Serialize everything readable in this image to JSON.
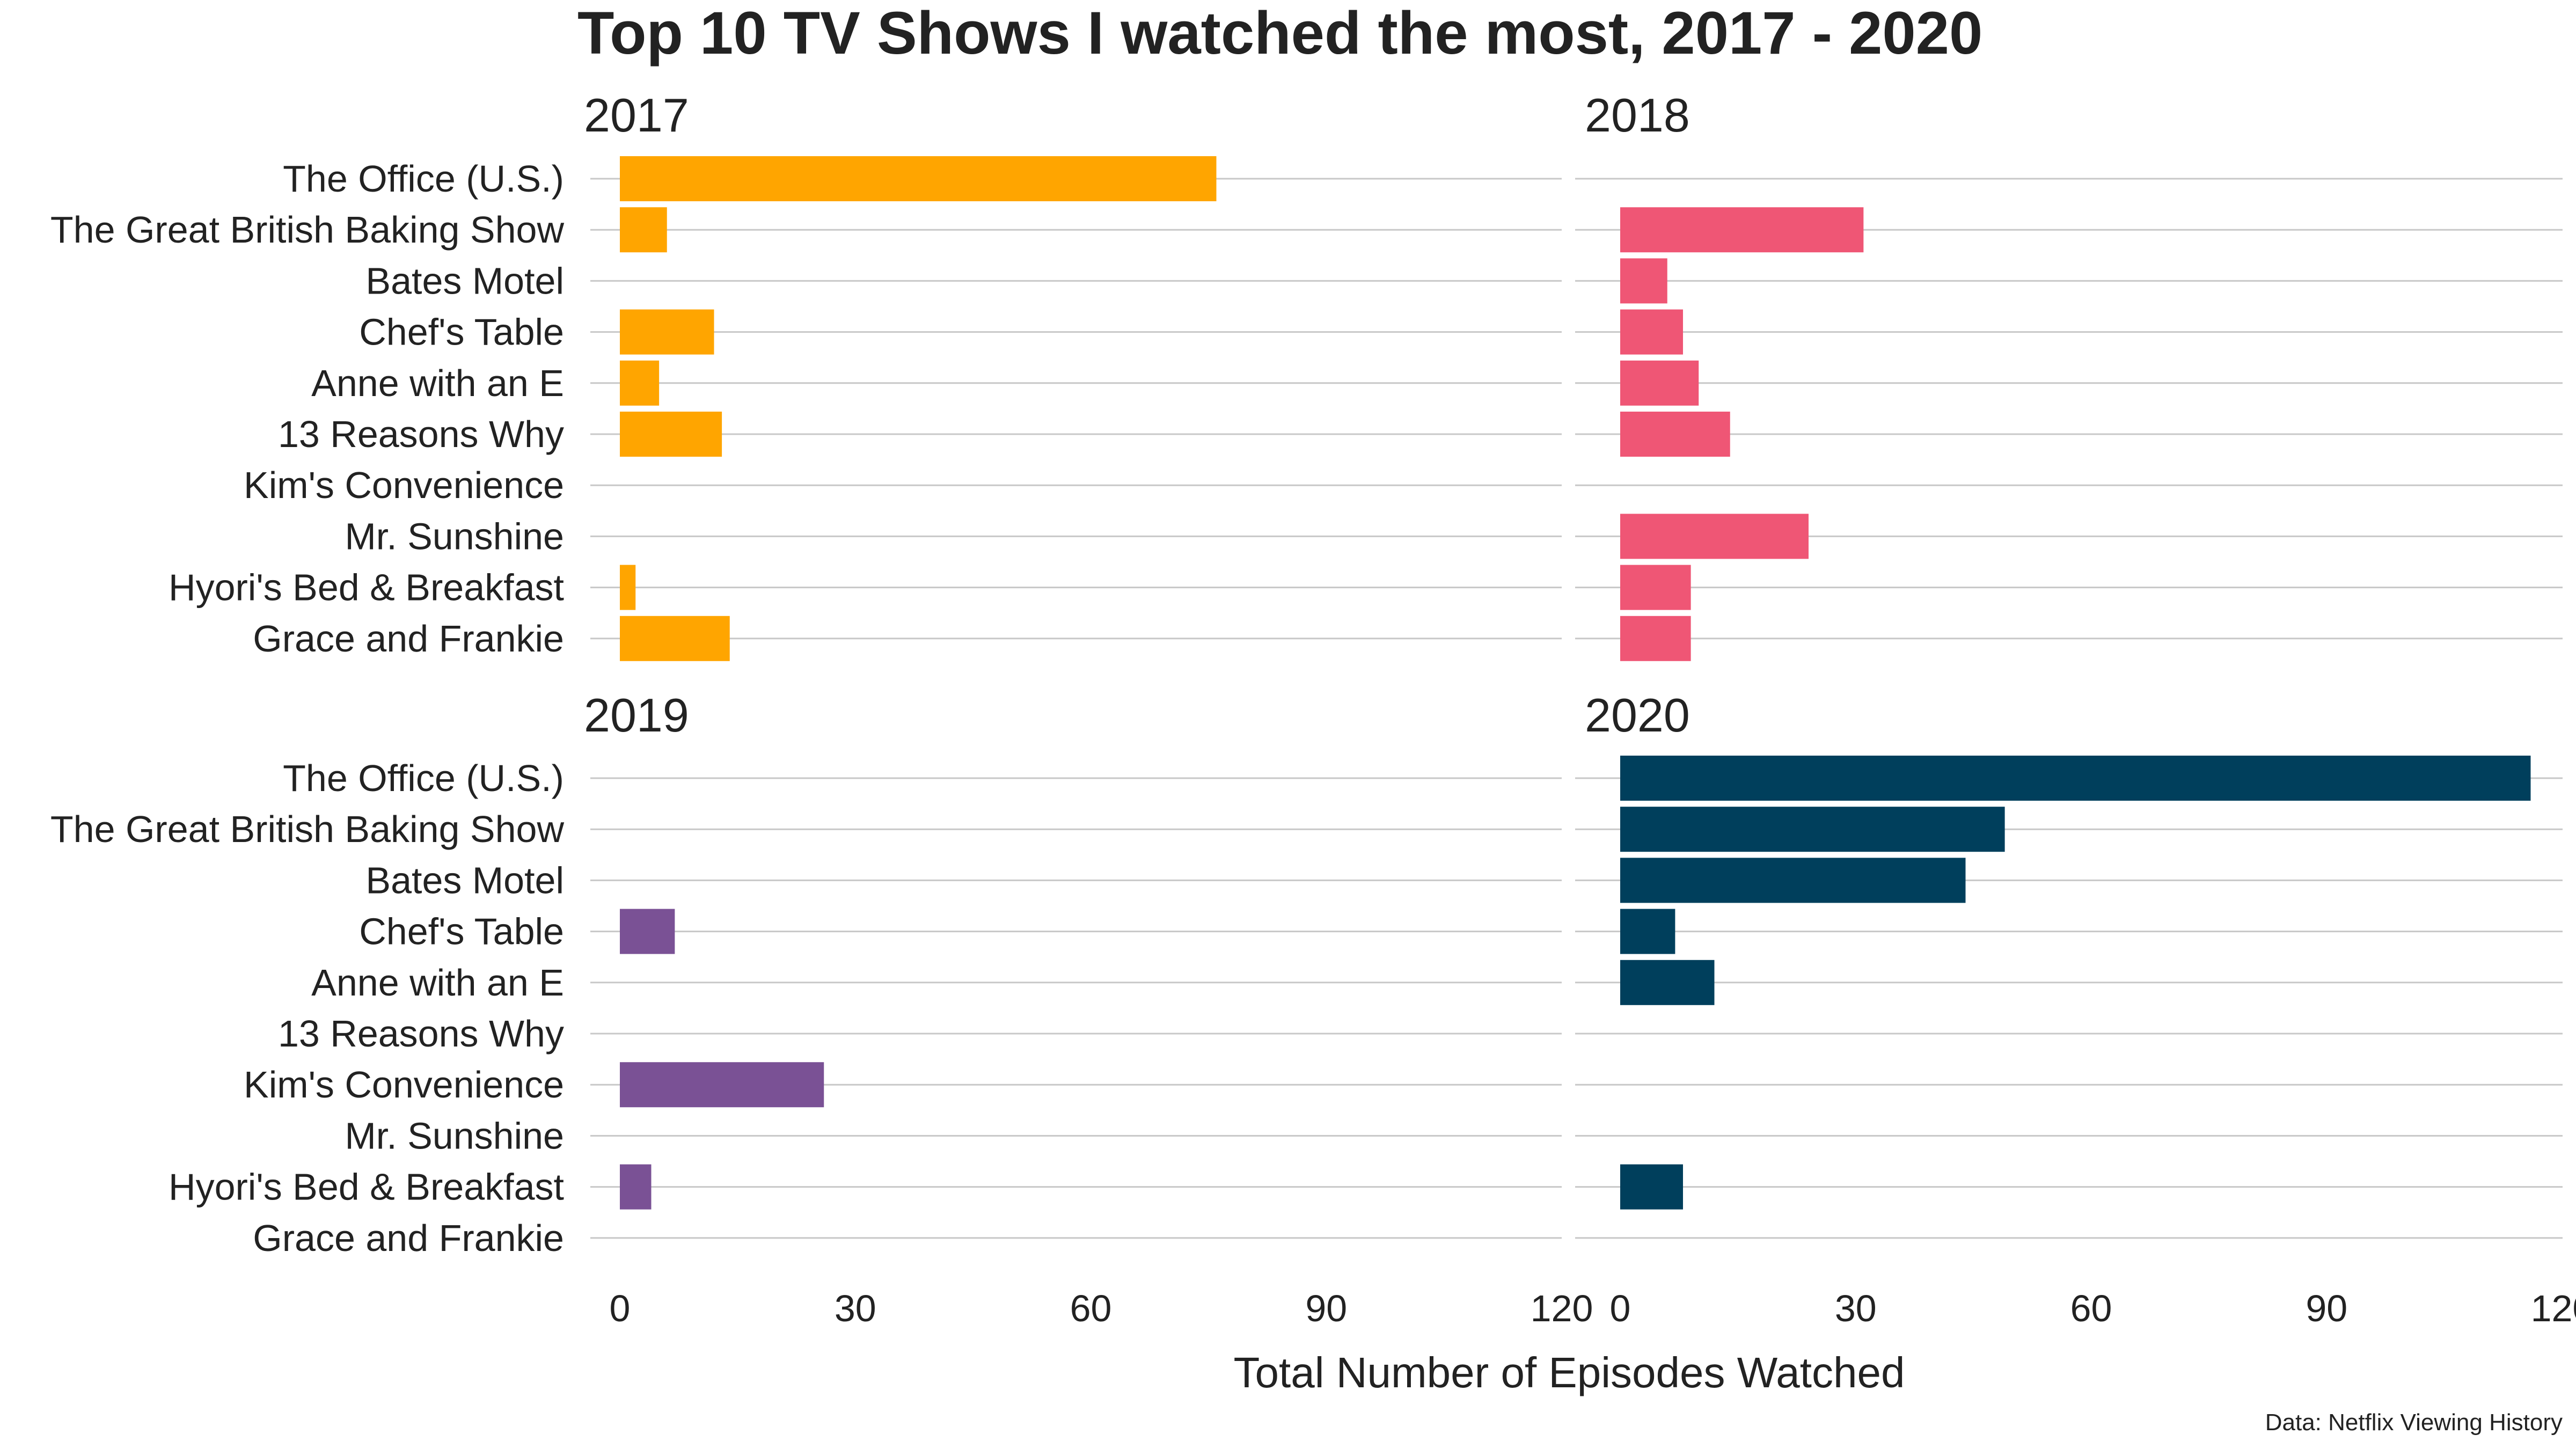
{
  "chart_data": {
    "type": "bar",
    "orientation": "horizontal",
    "title": "Top 10 TV Shows I watched the most, 2017 - 2020",
    "xlabel": "Total Number of Episodes Watched",
    "caption": "Data: Netflix Viewing History",
    "categories": [
      "The Office (U.S.)",
      "The Great British Baking Show",
      "Bates Motel",
      "Chef's Table",
      "Anne with an E",
      "13 Reasons Why",
      "Kim's Convenience",
      "Mr. Sunshine",
      "Hyori's Bed & Breakfast",
      "Grace and Frankie"
    ],
    "xlim": [
      0,
      120
    ],
    "xticks": [
      0,
      30,
      60,
      90,
      120
    ],
    "grid": "horizontal",
    "facets": [
      {
        "name": "2017",
        "color": "#FFA500",
        "values": [
          76,
          6,
          0,
          12,
          5,
          13,
          0,
          0,
          2,
          14
        ]
      },
      {
        "name": "2018",
        "color": "#EF5675",
        "values": [
          0,
          31,
          6,
          8,
          10,
          14,
          0,
          24,
          9,
          9
        ]
      },
      {
        "name": "2019",
        "color": "#7A5195",
        "values": [
          0,
          0,
          0,
          7,
          0,
          0,
          26,
          0,
          4,
          0
        ]
      },
      {
        "name": "2020",
        "color": "#003F5C",
        "values": [
          116,
          49,
          44,
          7,
          12,
          0,
          0,
          0,
          8,
          0
        ]
      }
    ]
  }
}
